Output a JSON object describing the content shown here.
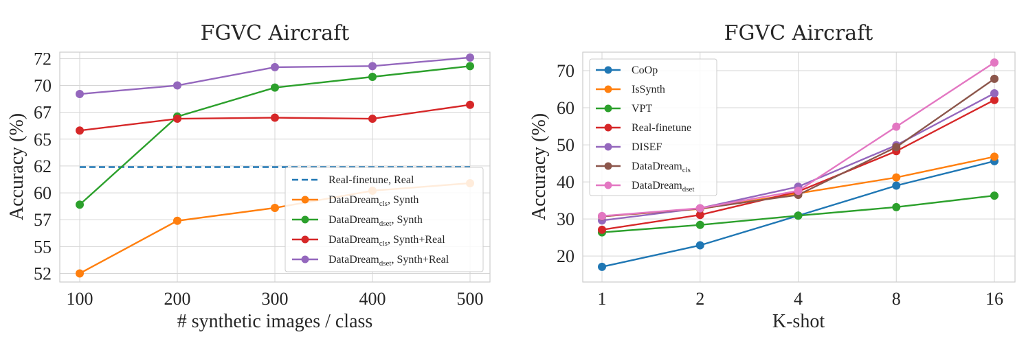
{
  "chart_data": [
    {
      "type": "line",
      "title": "FGVC Aircraft",
      "xlabel": "# synthetic images / class",
      "ylabel": "Accuracy (%)",
      "x": [
        100,
        200,
        300,
        400,
        500
      ],
      "x_tick_labels": [
        "100",
        "200",
        "300",
        "400",
        "500"
      ],
      "y_tick_labels": [
        "52",
        "55",
        "57",
        "60",
        "62",
        "65",
        "67",
        "70",
        "72"
      ],
      "y_ticks": [
        52,
        54.5,
        57,
        59.5,
        62,
        64.5,
        67,
        69.5,
        72
      ],
      "ylim": [
        51.2,
        72.6
      ],
      "grid": true,
      "legend_position": "lower-right",
      "series": [
        {
          "name": "Real-finetune, Real",
          "name_base": "Real-finetune, Real",
          "name_sub": "",
          "name_rest": "",
          "color": "#1f77b4",
          "dashed": true,
          "markers": false,
          "values": [
            61.9,
            61.9,
            61.9,
            61.9,
            61.9
          ]
        },
        {
          "name": "DataDream cls, Synth",
          "name_base": "DataDream",
          "name_sub": "cls",
          "name_rest": ", Synth",
          "color": "#ff7f0e",
          "dashed": false,
          "markers": true,
          "values": [
            52.0,
            56.9,
            58.1,
            59.7,
            60.4
          ]
        },
        {
          "name": "DataDream dset, Synth",
          "name_base": "DataDream",
          "name_sub": "dset",
          "name_rest": ", Synth",
          "color": "#2ca02c",
          "dashed": false,
          "markers": true,
          "values": [
            58.4,
            66.6,
            69.3,
            70.3,
            71.3
          ]
        },
        {
          "name": "DataDream cls, Synth+Real",
          "name_base": "DataDream",
          "name_sub": "cls",
          "name_rest": ", Synth+Real",
          "color": "#d62728",
          "dashed": false,
          "markers": true,
          "values": [
            65.3,
            66.4,
            66.5,
            66.4,
            67.7
          ]
        },
        {
          "name": "DataDream dset, Synth+Real",
          "name_base": "DataDream",
          "name_sub": "dset",
          "name_rest": ", Synth+Real",
          "color": "#9467bd",
          "dashed": false,
          "markers": true,
          "values": [
            68.7,
            69.5,
            71.2,
            71.3,
            72.1
          ]
        }
      ]
    },
    {
      "type": "line",
      "title": "FGVC Aircraft",
      "xlabel": "K-shot",
      "ylabel": "Accuracy (%)",
      "categories": [
        "1",
        "2",
        "4",
        "8",
        "16"
      ],
      "y_ticks": [
        20,
        30,
        40,
        50,
        60,
        70
      ],
      "y_tick_labels": [
        "20",
        "30",
        "40",
        "50",
        "60",
        "70"
      ],
      "ylim": [
        13,
        75
      ],
      "grid": true,
      "legend_position": "upper-left",
      "series": [
        {
          "name": "CoOp",
          "name_base": "CoOp",
          "name_sub": "",
          "name_rest": "",
          "color": "#1f77b4",
          "values": [
            17.1,
            22.9,
            30.9,
            39.0,
            45.6
          ]
        },
        {
          "name": "IsSynth",
          "name_base": "IsSynth",
          "name_sub": "",
          "name_rest": "",
          "color": "#ff7f0e",
          "values": [
            30.7,
            32.7,
            36.9,
            41.2,
            46.8
          ]
        },
        {
          "name": "VPT",
          "name_base": "VPT",
          "name_sub": "",
          "name_rest": "",
          "color": "#2ca02c",
          "values": [
            26.4,
            28.4,
            30.9,
            33.2,
            36.3
          ]
        },
        {
          "name": "Real-finetune",
          "name_base": "Real-finetune",
          "name_sub": "",
          "name_rest": "",
          "color": "#d62728",
          "values": [
            27.1,
            31.1,
            37.4,
            48.3,
            62.1
          ]
        },
        {
          "name": "DISEF",
          "name_base": "DISEF",
          "name_sub": "",
          "name_rest": "",
          "color": "#9467bd",
          "values": [
            29.6,
            32.9,
            38.7,
            49.9,
            63.9
          ]
        },
        {
          "name": "DataDream cls",
          "name_base": "DataDream",
          "name_sub": "cls",
          "name_rest": "",
          "color": "#8c564b",
          "values": [
            30.7,
            32.8,
            36.5,
            49.4,
            67.8
          ]
        },
        {
          "name": "DataDream dset",
          "name_base": "DataDream",
          "name_sub": "dset",
          "name_rest": "",
          "color": "#e377c2",
          "values": [
            30.8,
            32.9,
            37.6,
            54.9,
            72.2
          ]
        }
      ]
    }
  ]
}
